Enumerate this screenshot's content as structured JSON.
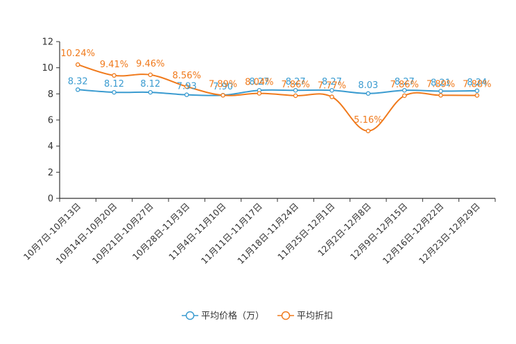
{
  "chart_data": {
    "type": "line",
    "title": "",
    "xlabel": "",
    "ylabel": "",
    "ylim": [
      0,
      12
    ],
    "yticks": [
      0,
      2,
      4,
      6,
      8,
      10,
      12
    ],
    "grid": false,
    "legend_position": "bottom-center",
    "categories": [
      "10月7日-10月13日",
      "10月14日-10月20日",
      "10月21日-10月27日",
      "10月28日-11月3日",
      "11月4日-11月10日",
      "11月11日-11月17日",
      "11月18日-11月24日",
      "11月25日-12月1日",
      "12月2日-12月8日",
      "12月9日-12月15日",
      "12月16日-12月22日",
      "12月23日-12月29日"
    ],
    "series": [
      {
        "name": "平均价格（万）",
        "color": "#3a9bd0",
        "values": [
          8.32,
          8.12,
          8.12,
          7.93,
          7.9,
          8.27,
          8.27,
          8.27,
          8.03,
          8.27,
          8.21,
          8.24
        ],
        "labels": [
          "8.32",
          "8.12",
          "8.12",
          "7.93",
          "7.90",
          "8.27",
          "8.27",
          "8.27",
          "8.03",
          "8.27",
          "8.21",
          "8.24"
        ]
      },
      {
        "name": "平均折扣",
        "color": "#f07a1c",
        "values": [
          10.24,
          9.41,
          9.46,
          8.56,
          7.89,
          8.04,
          7.86,
          7.77,
          5.16,
          7.86,
          7.89,
          7.88
        ],
        "labels": [
          "10.24%",
          "9.41%",
          "9.46%",
          "8.56%",
          "7.89%",
          "8.04%",
          "7.86%",
          "7.77%",
          "5.16%",
          "7.86%",
          "7.89%",
          "7.88%"
        ]
      }
    ]
  }
}
